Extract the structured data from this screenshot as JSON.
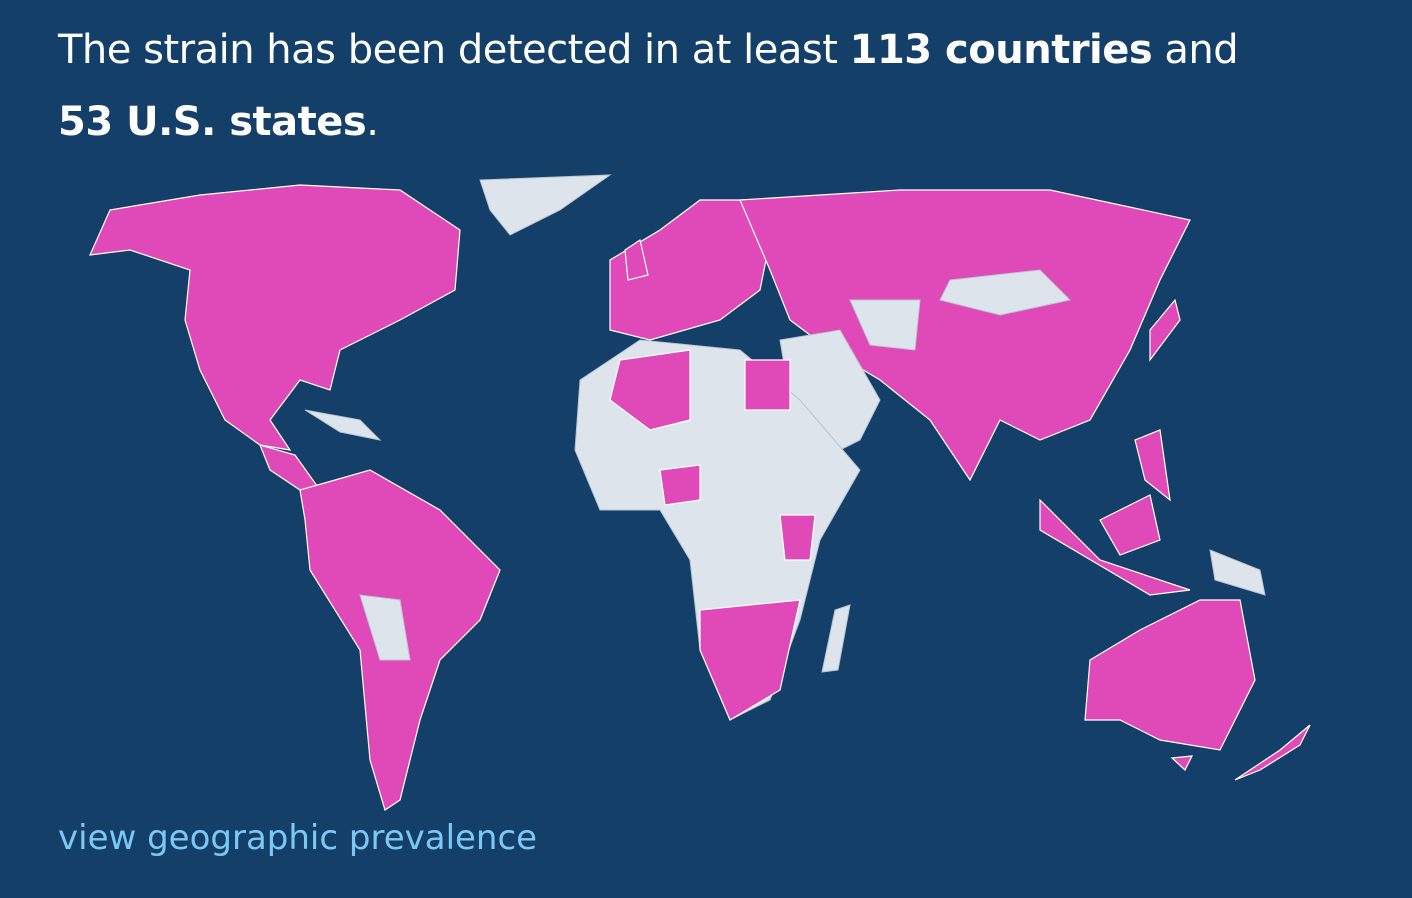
{
  "header": {
    "title": {
      "lead": "The strain has been detected in at least",
      "countries": "113 countries",
      "joiner": "and",
      "states": "53 U.S. states",
      "end": "."
    }
  },
  "link": {
    "label": "view geographic prevalence"
  }
}
